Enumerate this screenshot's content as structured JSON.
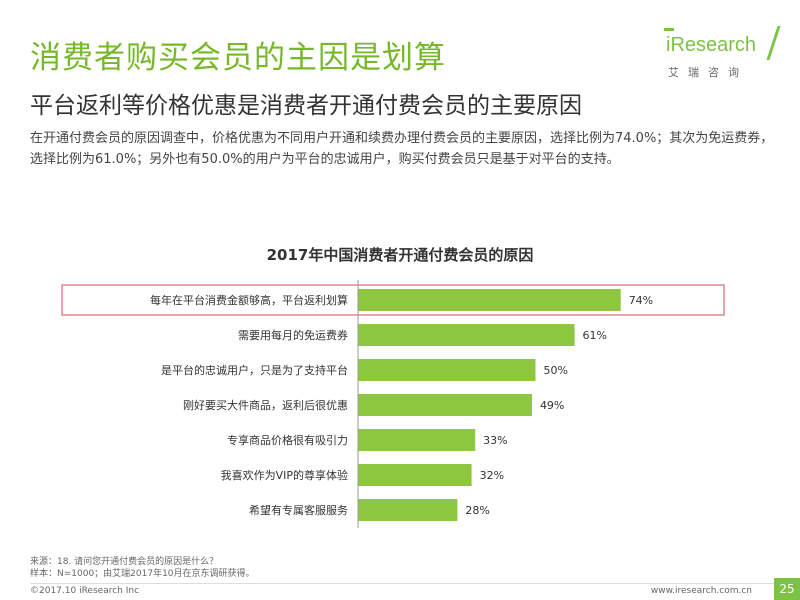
{
  "header": {
    "title": "消费者购买会员的主因是划算",
    "subtitle": "平台返利等价格优惠是消费者开通付费会员的主要原因",
    "description": "在开通付费会员的原因调查中，价格优惠为不同用户开通和续费办理付费会员的主要原因，选择比例为74.0%；其次为免运费券，选择比例为61.0%；另外也有50.0%的用户为平台的忠诚用户，购买付费会员只是基于对平台的支持。"
  },
  "logo": {
    "word": "iResearch",
    "cn": "艾瑞咨询"
  },
  "chart_data": {
    "type": "bar",
    "orientation": "horizontal",
    "title": "2017年中国消费者开通付费会员的原因",
    "categories": [
      "每年在平台消费金额够高，平台返利划算",
      "需要用每月的免运费券",
      "是平台的忠诚用户，只是为了支持平台",
      "刚好要买大件商品，返利后很优惠",
      "专享商品价格很有吸引力",
      "我喜欢作为VIP的尊享体验",
      "希望有专属客服服务"
    ],
    "values": [
      74,
      61,
      50,
      49,
      33,
      32,
      28
    ],
    "value_labels": [
      "74%",
      "61%",
      "50%",
      "49%",
      "33%",
      "32%",
      "28%"
    ],
    "highlight_index": 0,
    "xlim": [
      0,
      100
    ],
    "grid": false,
    "legend": "none"
  },
  "colors": {
    "bar": "#8dc63f",
    "highlight_border": "#e3858f",
    "title": "#77b82a",
    "accent": "#7cc243"
  },
  "footer": {
    "source_line1": "来源：18. 请问您开通付费会员的原因是什么？",
    "source_line2": "样本：N=1000；由艾瑞2017年10月在京东调研获得。",
    "copyright": "©2017.10 iResearch Inc",
    "website": "www.iresearch.com.cn",
    "page": "25"
  }
}
